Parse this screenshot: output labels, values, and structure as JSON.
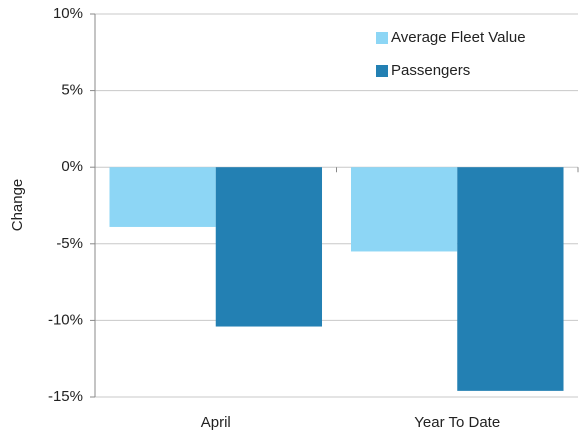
{
  "chart_data": {
    "type": "bar",
    "y_label": "Change",
    "categories": [
      "April",
      "Year To Date"
    ],
    "series": [
      {
        "name": "Average Fleet Value",
        "color": "#8dd6f5",
        "values": [
          -3.9,
          -5.5
        ]
      },
      {
        "name": "Passengers",
        "color": "#2380b3",
        "values": [
          -10.4,
          -14.6
        ]
      }
    ],
    "ylim": [
      -15,
      10
    ],
    "yticks": [
      {
        "value": -15,
        "label": "-15%"
      },
      {
        "value": -10,
        "label": "-10%"
      },
      {
        "value": -5,
        "label": "-5%"
      },
      {
        "value": 0,
        "label": "0%"
      },
      {
        "value": 5,
        "label": "5%"
      },
      {
        "value": 10,
        "label": "10%"
      }
    ],
    "grid": true,
    "legend": "top-right"
  }
}
